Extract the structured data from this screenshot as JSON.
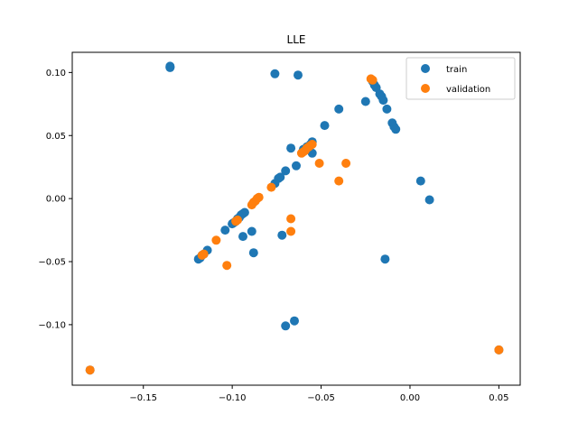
{
  "chart_data": {
    "type": "scatter",
    "title": "LLE",
    "xlabel": "",
    "ylabel": "",
    "xlim": [
      -0.19,
      0.062
    ],
    "ylim": [
      -0.148,
      0.116
    ],
    "xticks": [
      -0.15,
      -0.1,
      -0.05,
      0.0,
      0.05
    ],
    "xtick_labels": [
      "−0.15",
      "−0.10",
      "−0.05",
      "0.00",
      "0.05"
    ],
    "yticks": [
      -0.1,
      -0.05,
      0.0,
      0.05,
      0.1
    ],
    "ytick_labels": [
      "−0.10",
      "−0.05",
      "0.00",
      "0.05",
      "0.10"
    ],
    "grid": false,
    "legend_position": "top-right",
    "series": [
      {
        "name": "train",
        "color": "#1f77b4",
        "points": [
          [
            -0.135,
            0.104
          ],
          [
            -0.135,
            0.104
          ],
          [
            -0.135,
            0.105
          ],
          [
            -0.076,
            0.099
          ],
          [
            -0.063,
            0.098
          ],
          [
            -0.04,
            0.071
          ],
          [
            -0.048,
            0.058
          ],
          [
            -0.025,
            0.077
          ],
          [
            -0.021,
            0.093
          ],
          [
            -0.02,
            0.09
          ],
          [
            -0.019,
            0.088
          ],
          [
            -0.017,
            0.083
          ],
          [
            -0.016,
            0.081
          ],
          [
            -0.015,
            0.078
          ],
          [
            -0.013,
            0.071
          ],
          [
            -0.01,
            0.06
          ],
          [
            -0.009,
            0.057
          ],
          [
            -0.008,
            0.055
          ],
          [
            -0.055,
            0.045
          ],
          [
            -0.056,
            0.043
          ],
          [
            -0.058,
            0.041
          ],
          [
            -0.06,
            0.039
          ],
          [
            -0.067,
            0.04
          ],
          [
            -0.055,
            0.036
          ],
          [
            -0.064,
            0.026
          ],
          [
            -0.07,
            0.022
          ],
          [
            -0.073,
            0.017
          ],
          [
            -0.074,
            0.016
          ],
          [
            -0.076,
            0.012
          ],
          [
            0.006,
            0.014
          ],
          [
            0.011,
            -0.001
          ],
          [
            -0.093,
            -0.011
          ],
          [
            -0.094,
            -0.012
          ],
          [
            -0.095,
            -0.013
          ],
          [
            -0.096,
            -0.015
          ],
          [
            -0.097,
            -0.016
          ],
          [
            -0.098,
            -0.018
          ],
          [
            -0.099,
            -0.019
          ],
          [
            -0.1,
            -0.02
          ],
          [
            -0.104,
            -0.025
          ],
          [
            -0.089,
            -0.026
          ],
          [
            -0.094,
            -0.03
          ],
          [
            -0.072,
            -0.029
          ],
          [
            -0.114,
            -0.041
          ],
          [
            -0.116,
            -0.044
          ],
          [
            -0.117,
            -0.045
          ],
          [
            -0.118,
            -0.047
          ],
          [
            -0.119,
            -0.048
          ],
          [
            -0.088,
            -0.043
          ],
          [
            -0.014,
            -0.048
          ],
          [
            -0.065,
            -0.097
          ],
          [
            -0.07,
            -0.101
          ],
          [
            0.05,
            -0.12
          ],
          [
            -0.18,
            -0.136
          ]
        ]
      },
      {
        "name": "validation",
        "color": "#ff7f0e",
        "points": [
          [
            -0.022,
            0.095
          ],
          [
            -0.021,
            0.094
          ],
          [
            -0.055,
            0.043
          ],
          [
            -0.056,
            0.042
          ],
          [
            -0.057,
            0.041
          ],
          [
            -0.058,
            0.04
          ],
          [
            -0.059,
            0.038
          ],
          [
            -0.06,
            0.037
          ],
          [
            -0.061,
            0.036
          ],
          [
            -0.051,
            0.028
          ],
          [
            -0.036,
            0.028
          ],
          [
            -0.04,
            0.014
          ],
          [
            -0.078,
            0.009
          ],
          [
            -0.085,
            0.001
          ],
          [
            -0.086,
            0.0
          ],
          [
            -0.087,
            -0.002
          ],
          [
            -0.088,
            -0.003
          ],
          [
            -0.089,
            -0.005
          ],
          [
            -0.097,
            -0.017
          ],
          [
            -0.098,
            -0.018
          ],
          [
            -0.067,
            -0.016
          ],
          [
            -0.067,
            -0.026
          ],
          [
            -0.109,
            -0.033
          ],
          [
            -0.116,
            -0.044
          ],
          [
            -0.117,
            -0.045
          ],
          [
            -0.103,
            -0.053
          ],
          [
            0.05,
            -0.12
          ],
          [
            -0.18,
            -0.136
          ]
        ]
      }
    ]
  }
}
